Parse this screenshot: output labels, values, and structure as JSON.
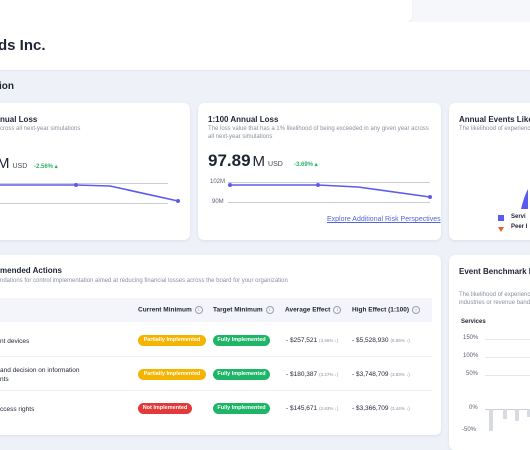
{
  "header": {
    "company": "ds Inc."
  },
  "section": {
    "title": "ion"
  },
  "cards": {
    "annual_loss": {
      "title": "nual Loss",
      "subtitle": "cross all next-year simulations",
      "value_unit": "M",
      "currency": "USD",
      "change": "-2.56% ▴"
    },
    "loss_1_100": {
      "title": "1:100 Annual Loss",
      "subtitle": "The loss value that has a 1% likelihood of being exceeded in any given year across all next-year simulations",
      "value": "97.89",
      "value_unit": "M",
      "currency": "USD",
      "change": "-3.69% ▴",
      "axis_top": "102M",
      "axis_bottom": "90M",
      "link": "Explore Additional Risk Perspectives"
    },
    "events": {
      "title": "Annual Events Likel",
      "subtitle": "The likelihood of experiencin",
      "legend": [
        {
          "label": "Servi",
          "color": "#5b5bf0",
          "shape": "square"
        },
        {
          "label": "Peer I",
          "color": "#e8602a",
          "shape": "triangle"
        }
      ]
    },
    "actions": {
      "title": "mended Actions",
      "subtitle": "ndations for control implementation aimed at reducing financial losses across the board for your organization",
      "columns": [
        "Current Minimum",
        "Target Minimum",
        "Average Effect",
        "High Effect (1:100)"
      ],
      "rows": [
        {
          "name": [
            "nt devices"
          ],
          "current": "Partially Implemented",
          "target": "Fully Implemented",
          "avg": "- $257,521",
          "avg_pct": "(4.66% ↓)",
          "high": "- $5,528,930",
          "high_pct": "(5.65% ↓)"
        },
        {
          "name": [
            "and decision on information",
            "nts"
          ],
          "current": "Partially Implemented",
          "target": "Fully Implemented",
          "avg": "- $180,387",
          "avg_pct": "(3.27% ↓)",
          "high": "- $3,748,709",
          "high_pct": "(3.83% ↓)"
        },
        {
          "name": [
            "ccess rights"
          ],
          "current": "Not Implemented",
          "target": "Fully Implemented",
          "avg": "- $145,671",
          "avg_pct": "(2.63% ↓)",
          "high": "- $3,366,709",
          "high_pct": "(3.44% ↓)"
        }
      ]
    },
    "benchmark": {
      "title": "Event Benchmark I",
      "subtitle": [
        "The likelihood of experiencin",
        "industries or revenue bands,"
      ],
      "category": "Services",
      "yticks": [
        "150%",
        "100%",
        "50%",
        "0%",
        "-50%"
      ]
    }
  },
  "colors": {
    "accent": "#5b5bf0",
    "positive": "#2fb36b",
    "yellow": "#f5b400",
    "green": "#1fb566",
    "red": "#e23a3a"
  }
}
